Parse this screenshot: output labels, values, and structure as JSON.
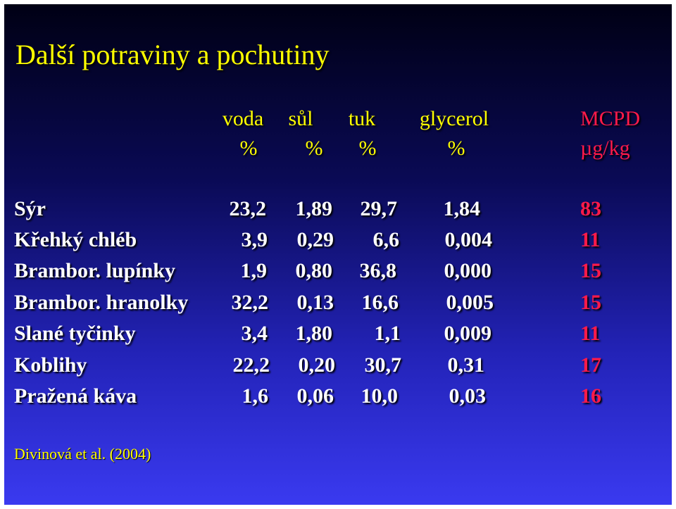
{
  "title": "Další potraviny a pochutiny",
  "headers": {
    "voda": "voda",
    "sul": "sůl",
    "tuk": "tuk",
    "glycerol": "glycerol",
    "mcpd": "MCPD",
    "unit_percent": "%",
    "unit_mcpd": "µg/kg"
  },
  "rows": [
    {
      "label": "Sýr",
      "voda": "23,2",
      "sul": "1,89",
      "tuk": "29,7",
      "glycerol": "1,84",
      "mcpd": "83"
    },
    {
      "label": "Křehký chléb",
      "voda": "3,9",
      "sul": "0,29",
      "tuk": "6,6",
      "glycerol": "0,004",
      "mcpd": "11"
    },
    {
      "label": "Brambor. lupínky",
      "voda": "1,9",
      "sul": "0,80",
      "tuk": "36,8",
      "glycerol": "0,000",
      "mcpd": "15"
    },
    {
      "label": "Brambor. hranolky",
      "voda": "32,2",
      "sul": "0,13",
      "tuk": "16,6",
      "glycerol": "0,005",
      "mcpd": "15"
    },
    {
      "label": "Slané tyčinky",
      "voda": "3,4",
      "sul": "1,80",
      "tuk": "1,1",
      "glycerol": "0,009",
      "mcpd": "11"
    },
    {
      "label": "Koblihy",
      "voda": "22,2",
      "sul": "0,20",
      "tuk": "30,7",
      "glycerol": "0,31",
      "mcpd": "17"
    },
    {
      "label": "Pražená káva",
      "voda": "1,6",
      "sul": "0,06",
      "tuk": "10,0",
      "glycerol": "0,03",
      "mcpd": "16"
    }
  ],
  "citation": "Divinová et al. (2004)",
  "colors": {
    "title": "#ffff00",
    "header": "#ffff00",
    "mcpd": "#ff1a4a",
    "body_text": "#ffffff",
    "background_top": "#000014",
    "background_bottom": "#3a3af0"
  }
}
